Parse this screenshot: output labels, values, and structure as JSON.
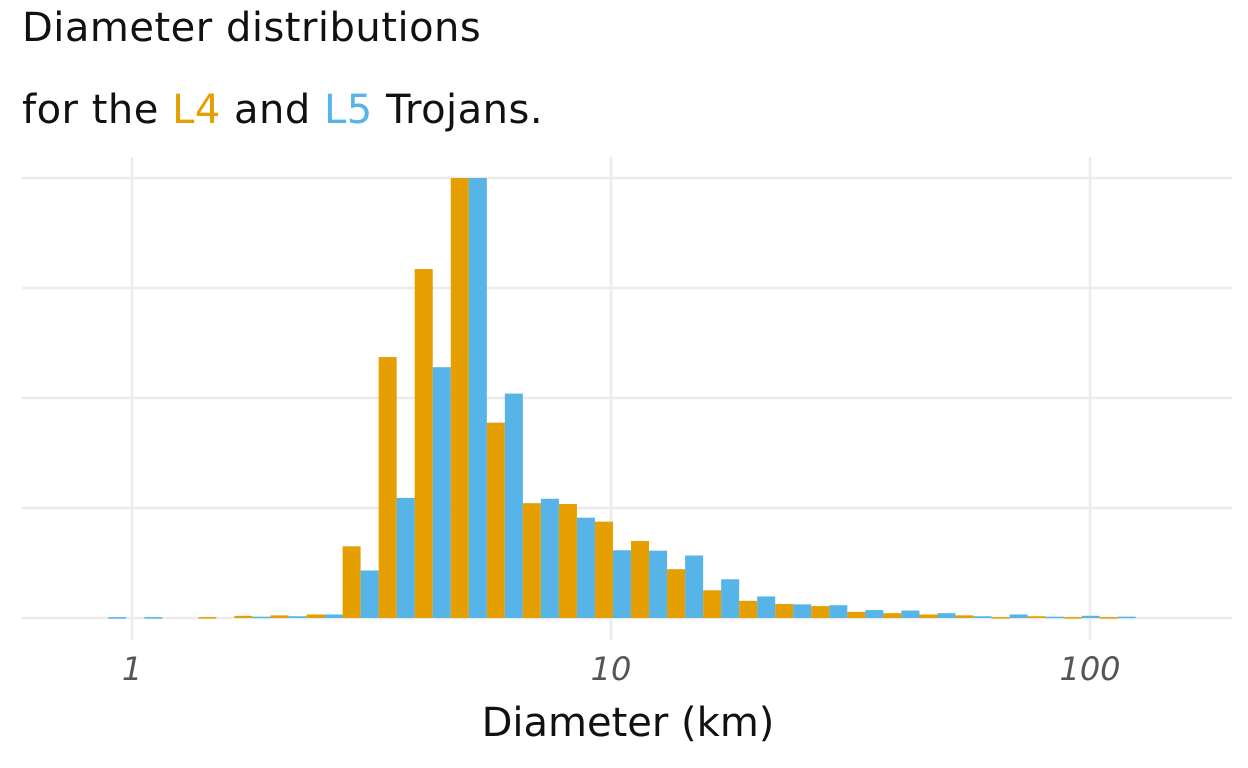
{
  "chart_data": {
    "type": "bar",
    "title_line1": "Diameter distributions",
    "title_line2_prefix": "for the ",
    "title_line2_mid": " and ",
    "title_line2_suffix": " Trojans.",
    "xlabel": "Diameter (km)",
    "ylabel": "",
    "x_scale": "log10",
    "xlim": [
      0.6,
      200
    ],
    "ylim": [
      0,
      100
    ],
    "x_ticks": [
      {
        "value": 1,
        "label": "1"
      },
      {
        "value": 10,
        "label": "10"
      },
      {
        "value": 100,
        "label": "100"
      }
    ],
    "y_ticks_unlabeled": [
      0,
      25,
      50,
      75,
      100
    ],
    "grid": true,
    "legend": "in-title",
    "bin_edges": [
      0.818,
      0.973,
      1.157,
      1.376,
      1.636,
      1.946,
      2.314,
      2.752,
      3.273,
      3.892,
      4.629,
      5.505,
      6.546,
      7.785,
      9.258,
      11.01,
      13.094,
      15.571,
      18.517,
      22.021,
      26.188,
      31.143,
      37.036,
      44.044,
      52.377,
      62.288,
      74.074,
      88.09,
      104.757,
      124.578
    ],
    "series": [
      {
        "name": "L4",
        "color": "#E69F00",
        "values": [
          0,
          0,
          0,
          0.2,
          0.5,
          0.6,
          0.8,
          16.3,
          59.3,
          79.3,
          100,
          44.4,
          26.1,
          25.9,
          21.9,
          17.5,
          11.1,
          6.3,
          3.9,
          3.2,
          2.7,
          1.4,
          1.1,
          0.8,
          0.6,
          0.2,
          0.4,
          0.2,
          0.2
        ]
      },
      {
        "name": "L5",
        "color": "#56B4E9",
        "values": [
          0.2,
          0.2,
          0,
          0,
          0.3,
          0.4,
          0.8,
          10.8,
          27.3,
          57.0,
          100,
          51.0,
          27.1,
          22.8,
          15.4,
          15.3,
          14.2,
          8.8,
          4.9,
          3.1,
          2.9,
          1.8,
          1.7,
          1.1,
          0.4,
          0.8,
          0.3,
          0.5,
          0.3
        ]
      }
    ]
  }
}
